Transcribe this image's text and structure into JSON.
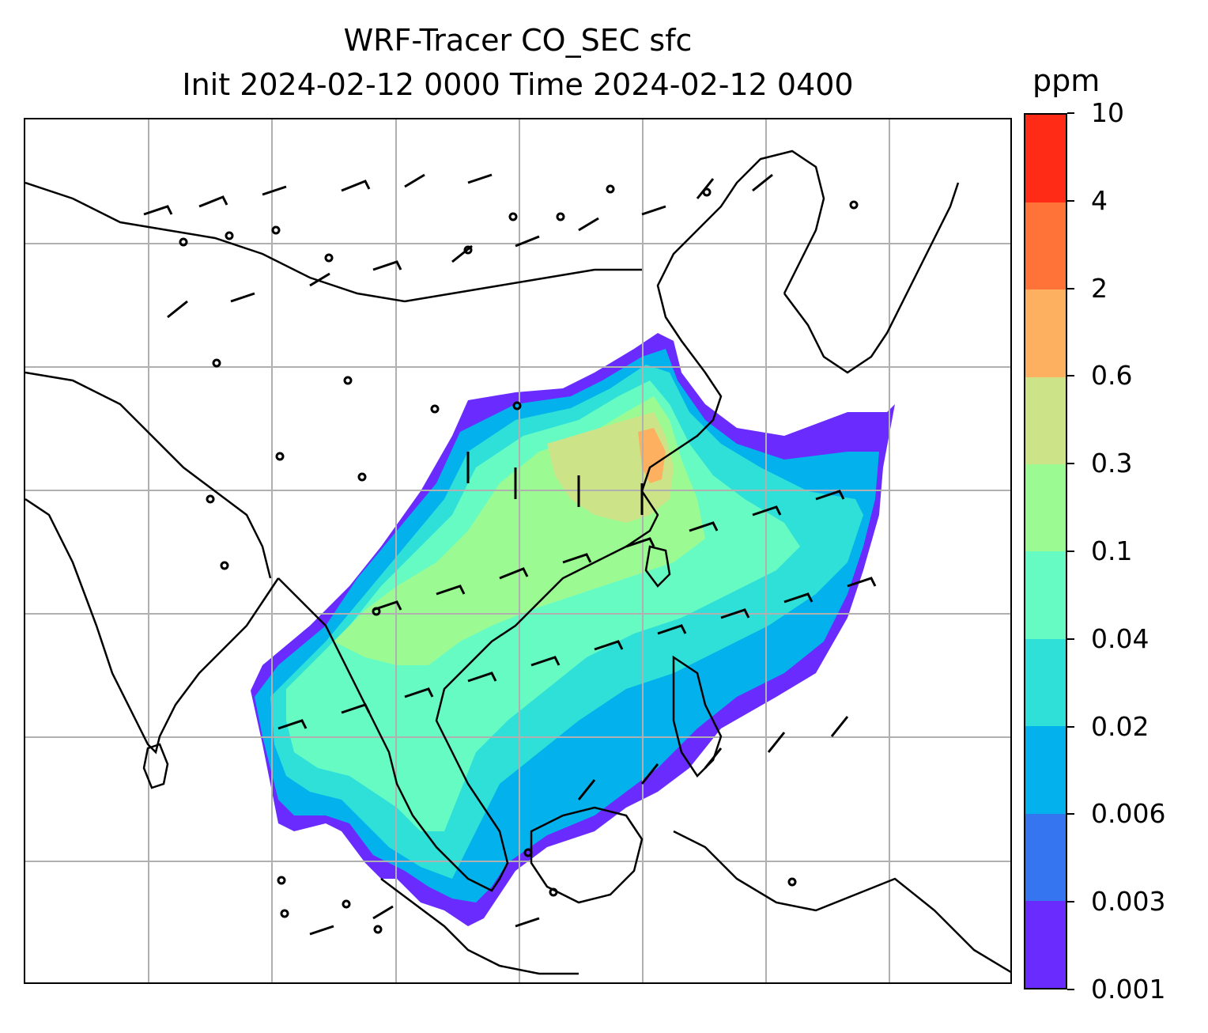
{
  "title": {
    "line1": "WRF-Tracer CO_SEC sfc",
    "line2": "Init 2024-02-12 0000 Time 2024-02-12 0400"
  },
  "map": {
    "region": "East and Southeast Asia",
    "gridlines": true,
    "field": "CO_SEC surface tracer concentration",
    "overlay": "wind barbs",
    "coastline_color": "#000000",
    "gridline_color": "#b0b0b0"
  },
  "colorbar": {
    "unit": "ppm",
    "ticks": [
      "10",
      "4",
      "2",
      "0.6",
      "0.3",
      "0.1",
      "0.04",
      "0.02",
      "0.006",
      "0.003",
      "0.001"
    ],
    "colors": [
      "#6a2bff",
      "#3575f0",
      "#03b2ec",
      "#2ee0d8",
      "#67fbc4",
      "#9bfb92",
      "#cde388",
      "#fdb160",
      "#ff7338",
      "#ff2b17"
    ]
  }
}
